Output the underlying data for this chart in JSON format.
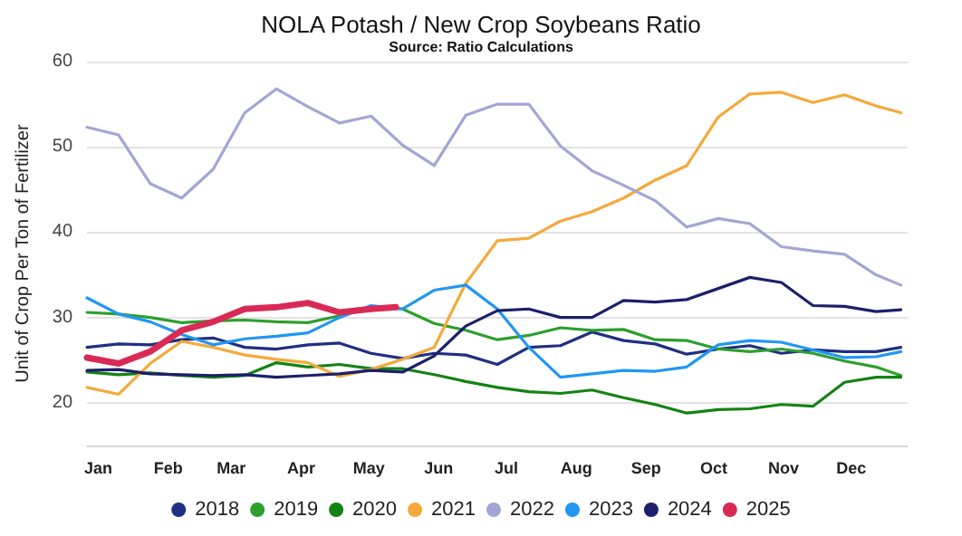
{
  "chart_data": {
    "type": "line",
    "title": "NOLA Potash / New Crop Soybeans Ratio",
    "subtitle": "Source: Ratio Calculations",
    "ylabel": "Unit of Crop Per Ton of Fertilizer",
    "x": [
      "--01-01",
      "--01-15",
      "--01-29",
      "--02-12",
      "--02-26",
      "--03-12",
      "--03-26",
      "--04-09",
      "--04-23",
      "--05-07",
      "--05-21",
      "--06-04",
      "--06-18",
      "--07-02",
      "--07-16",
      "--07-30",
      "--08-13",
      "--08-27",
      "--09-10",
      "--09-24",
      "--10-08",
      "--10-22",
      "--11-05",
      "--11-19",
      "--12-03",
      "--12-17",
      "--12-28"
    ],
    "series": [
      {
        "name": "2018",
        "color": "#1f2f82",
        "values": [
          26.5,
          26.9,
          26.8,
          27.4,
          27.6,
          26.5,
          26.3,
          26.8,
          27.0,
          25.8,
          25.2,
          25.8,
          25.6,
          24.5,
          26.5,
          26.7,
          28.3,
          27.3,
          26.9,
          25.7,
          26.3,
          26.7,
          25.8,
          26.2,
          26.0,
          26.0,
          26.5
        ]
      },
      {
        "name": "2019",
        "color": "#2e9f2e",
        "values": [
          30.6,
          30.4,
          30.0,
          29.4,
          29.6,
          29.7,
          29.5,
          29.4,
          30.2,
          31.3,
          31.0,
          29.3,
          28.5,
          27.4,
          27.9,
          28.8,
          28.5,
          28.6,
          27.4,
          27.3,
          26.3,
          26.0,
          26.3,
          25.8,
          24.9,
          24.2,
          23.2
        ]
      },
      {
        "name": "2020",
        "color": "#148214",
        "values": [
          23.6,
          23.3,
          23.5,
          23.2,
          23.0,
          23.2,
          24.7,
          24.2,
          24.5,
          24.0,
          24.0,
          23.3,
          22.5,
          21.8,
          21.3,
          21.1,
          21.5,
          20.6,
          19.8,
          18.8,
          19.2,
          19.3,
          19.8,
          19.6,
          22.4,
          23.0,
          23.0
        ]
      },
      {
        "name": "2021",
        "color": "#f5a93a",
        "values": [
          21.8,
          21.0,
          24.6,
          27.2,
          26.5,
          25.6,
          25.1,
          24.7,
          23.1,
          23.9,
          25.1,
          26.5,
          34.0,
          39.0,
          39.3,
          41.3,
          42.4,
          44.0,
          46.1,
          47.8,
          53.5,
          56.2,
          56.4,
          55.2,
          56.1,
          54.8,
          54.0
        ]
      },
      {
        "name": "2022",
        "color": "#a3a6d4",
        "values": [
          52.3,
          51.4,
          45.7,
          44.0,
          47.4,
          54.0,
          56.8,
          54.7,
          52.8,
          53.6,
          50.2,
          47.8,
          53.7,
          55.0,
          55.0,
          50.1,
          47.2,
          45.5,
          43.7,
          40.6,
          41.6,
          41.0,
          38.3,
          37.8,
          37.4,
          35.0,
          33.8
        ]
      },
      {
        "name": "2023",
        "color": "#2196f3",
        "values": [
          32.3,
          30.4,
          29.5,
          28.0,
          26.8,
          27.5,
          27.8,
          28.2,
          30.0,
          31.4,
          31.0,
          33.2,
          33.8,
          31.0,
          26.5,
          23.0,
          23.4,
          23.8,
          23.7,
          24.2,
          26.8,
          27.3,
          27.1,
          26.2,
          25.3,
          25.4,
          26.0
        ]
      },
      {
        "name": "2024",
        "color": "#1c1f6b",
        "values": [
          23.8,
          23.9,
          23.4,
          23.3,
          23.2,
          23.3,
          23.0,
          23.2,
          23.4,
          23.8,
          23.6,
          25.5,
          29.0,
          30.8,
          31.0,
          30.0,
          30.0,
          32.0,
          31.8,
          32.1,
          33.4,
          34.7,
          34.1,
          31.4,
          31.3,
          30.7,
          30.9
        ]
      },
      {
        "name": "2025",
        "color": "#d92a55",
        "x": [
          "--01-01",
          "--01-15",
          "--01-29",
          "--02-12",
          "--02-26",
          "--03-12",
          "--03-26",
          "--04-09",
          "--04-23",
          "--05-07",
          "--05-18"
        ],
        "values": [
          25.3,
          24.6,
          26.0,
          28.5,
          29.5,
          31.0,
          31.2,
          31.7,
          30.6,
          31.0,
          31.2
        ]
      }
    ],
    "xlim": [
      "--01-01",
      "--12-31"
    ],
    "xticks": [
      {
        "value": "--01-06",
        "label": "Jan"
      },
      {
        "value": "--02-06",
        "label": "Feb"
      },
      {
        "value": "--03-06",
        "label": "Mar"
      },
      {
        "value": "--04-06",
        "label": "Apr"
      },
      {
        "value": "--05-06",
        "label": "May"
      },
      {
        "value": "--06-06",
        "label": "Jun"
      },
      {
        "value": "--07-06",
        "label": "Jul"
      },
      {
        "value": "--08-06",
        "label": "Aug"
      },
      {
        "value": "--09-06",
        "label": "Sep"
      },
      {
        "value": "--10-06",
        "label": "Oct"
      },
      {
        "value": "--11-06",
        "label": "Nov"
      },
      {
        "value": "--12-06",
        "label": "Dec"
      }
    ],
    "ylim": [
      15,
      60
    ],
    "yticks": [
      20,
      30,
      40,
      50,
      60
    ],
    "grid": "y",
    "legend": "bottom",
    "marker": "none",
    "line_style": "solid"
  }
}
